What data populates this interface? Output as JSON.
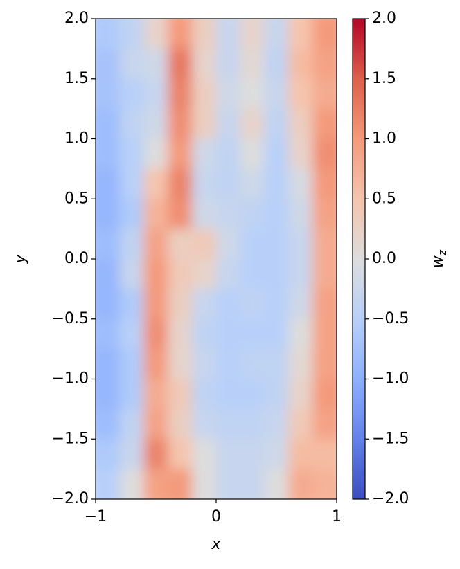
{
  "chart_data": {
    "type": "heatmap",
    "xlabel": "x",
    "ylabel": "y",
    "colorbar_label": {
      "text": "w",
      "subscript": "z"
    },
    "xlim": [
      -1,
      1
    ],
    "ylim": [
      -2,
      2
    ],
    "clim": [
      -2,
      2
    ],
    "xticks": [
      {
        "value": -1,
        "label": "−1"
      },
      0,
      1
    ],
    "yticks": [
      {
        "value": -2,
        "label": "−2.0"
      },
      {
        "value": -1.5,
        "label": "−1.5"
      },
      {
        "value": -1,
        "label": "−1.0"
      },
      {
        "value": -0.5,
        "label": "−0.5"
      },
      {
        "value": 0,
        "label": "0.0"
      },
      0.5,
      {
        "value": 1,
        "label": "1.0"
      },
      1.5,
      {
        "value": 2,
        "label": "2.0"
      }
    ],
    "cticks": [
      {
        "value": -2,
        "label": "−2.0"
      },
      {
        "value": -1.5,
        "label": "−1.5"
      },
      {
        "value": -1,
        "label": "−1.0"
      },
      {
        "value": -0.5,
        "label": "−0.5"
      },
      {
        "value": 0,
        "label": "0.0"
      },
      0.5,
      {
        "value": 1,
        "label": "1.0"
      },
      1.5,
      {
        "value": 2,
        "label": "2.0"
      }
    ],
    "colormap": [
      "#3b4cc0",
      "#6282ea",
      "#8db0fe",
      "#b8d0f9",
      "#dddddd",
      "#f5c4ad",
      "#f49a7b",
      "#de604d",
      "#b40426"
    ],
    "z": [
      [
        -0.6,
        -0.4,
        0.2,
        1.0,
        0.3,
        -0.3,
        0.2,
        -0.3,
        0.5,
        1.0
      ],
      [
        -0.7,
        -0.3,
        -0.2,
        1.3,
        0.2,
        -0.3,
        0.1,
        -0.4,
        0.6,
        0.9
      ],
      [
        -0.7,
        -0.5,
        -0.3,
        1.2,
        0.3,
        -0.2,
        0.0,
        -0.3,
        0.5,
        0.8
      ],
      [
        -0.8,
        -0.4,
        -0.2,
        1.1,
        0.3,
        -0.3,
        0.2,
        -0.4,
        0.3,
        1.0
      ],
      [
        -0.8,
        -0.5,
        0.0,
        1.0,
        -0.2,
        -0.4,
        0.0,
        -0.5,
        0.2,
        1.1
      ],
      [
        -0.9,
        -0.5,
        0.5,
        1.2,
        -0.3,
        -0.4,
        -0.2,
        -0.5,
        -0.1,
        1.0
      ],
      [
        -0.9,
        -0.6,
        0.7,
        1.1,
        -0.2,
        -0.3,
        -0.4,
        -0.5,
        -0.2,
        0.9
      ],
      [
        -0.8,
        -0.4,
        0.9,
        0.3,
        0.4,
        -0.2,
        -0.5,
        -0.5,
        -0.3,
        0.8
      ],
      [
        -0.9,
        -0.3,
        1.0,
        0.4,
        0.2,
        -0.3,
        -0.5,
        -0.5,
        -0.3,
        0.8
      ],
      [
        -0.9,
        -0.6,
        1.0,
        0.3,
        -0.3,
        -0.5,
        -0.4,
        -0.5,
        -0.2,
        0.9
      ],
      [
        -0.8,
        -0.5,
        1.1,
        0.2,
        -0.4,
        -0.5,
        -0.5,
        -0.5,
        0.0,
        0.9
      ],
      [
        -0.9,
        -0.6,
        1.0,
        0.2,
        -0.3,
        -0.5,
        -0.4,
        -0.4,
        0.1,
        0.9
      ],
      [
        -0.9,
        -0.6,
        0.8,
        0.4,
        -0.4,
        -0.5,
        -0.5,
        -0.4,
        0.2,
        1.0
      ],
      [
        -0.8,
        -0.4,
        0.9,
        0.3,
        -0.3,
        -0.4,
        -0.4,
        -0.3,
        0.4,
        0.9
      ],
      [
        -0.6,
        -0.3,
        1.2,
        0.5,
        0.0,
        -0.3,
        -0.3,
        -0.2,
        0.6,
        0.6
      ],
      [
        -0.5,
        0.0,
        0.9,
        1.0,
        0.0,
        -0.3,
        -0.3,
        0.0,
        0.8,
        0.7
      ]
    ]
  }
}
